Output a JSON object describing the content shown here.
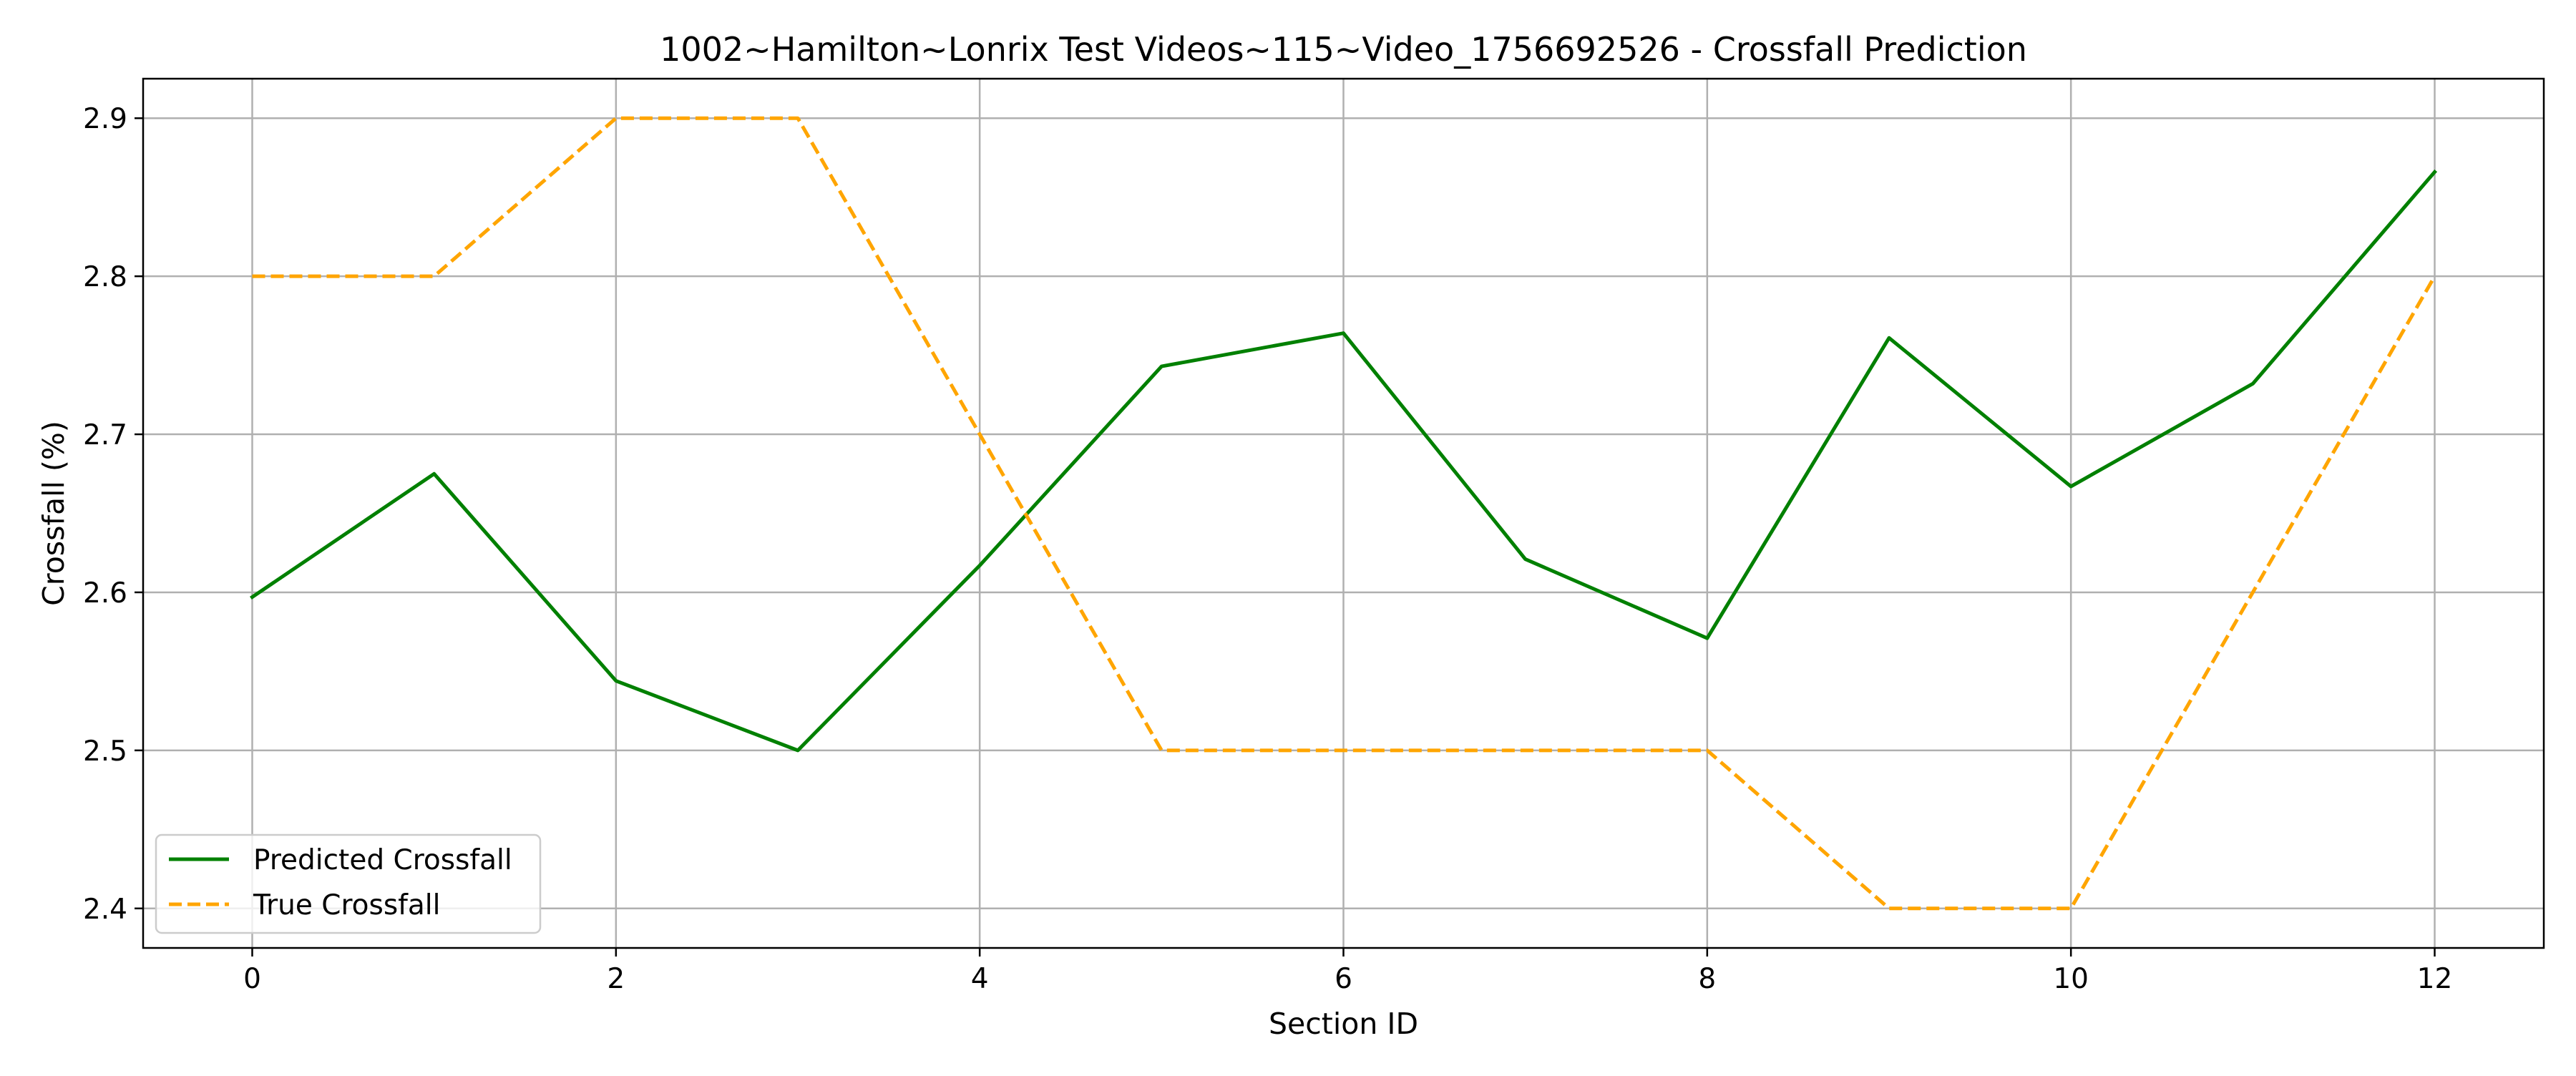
{
  "chart_data": {
    "type": "line",
    "title": "1002~Hamilton~Lonrix Test Videos~115~Video_1756692526 - Crossfall Prediction",
    "xlabel": "Section ID",
    "ylabel": "Crossfall (%)",
    "xlim": [
      -0.6,
      12.6
    ],
    "ylim": [
      2.375,
      2.925
    ],
    "xticks": [
      0,
      2,
      4,
      6,
      8,
      10,
      12
    ],
    "yticks": [
      2.4,
      2.5,
      2.6,
      2.7,
      2.8,
      2.9
    ],
    "ytick_labels": [
      "2.4",
      "2.5",
      "2.6",
      "2.7",
      "2.8",
      "2.9"
    ],
    "grid": true,
    "legend_position": "lower left",
    "x": [
      0,
      1,
      2,
      3,
      4,
      5,
      6,
      7,
      8,
      9,
      10,
      11,
      12
    ],
    "series": [
      {
        "name": "Predicted Crossfall",
        "color": "#008000",
        "style": "solid",
        "values": [
          2.597,
          2.675,
          2.544,
          2.5,
          2.617,
          2.743,
          2.764,
          2.621,
          2.571,
          2.761,
          2.667,
          2.732,
          2.866
        ]
      },
      {
        "name": "True Crossfall",
        "color": "#FFA500",
        "style": "dashed",
        "values": [
          2.8,
          2.8,
          2.9,
          2.9,
          2.7,
          2.5,
          2.5,
          2.5,
          2.5,
          2.4,
          2.4,
          2.6,
          2.8
        ]
      }
    ]
  }
}
